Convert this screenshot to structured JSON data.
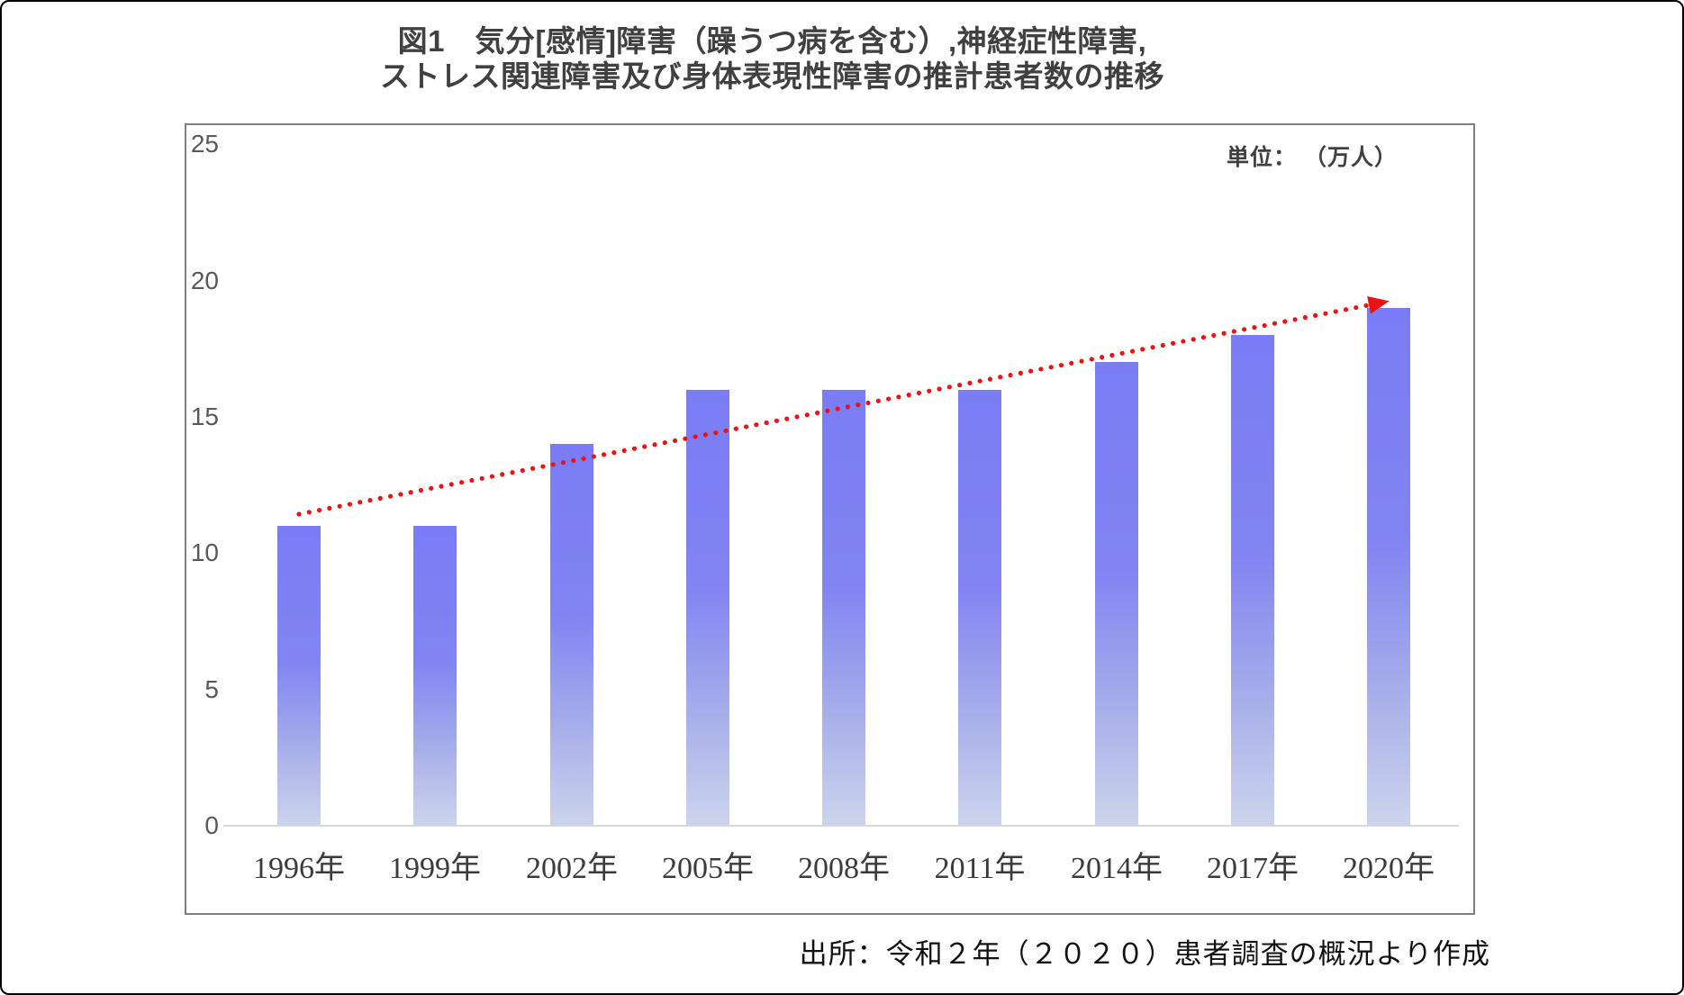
{
  "figure": {
    "title_line1": "図1　気分[感情]障害（躁うつ病を含む）,神経症性障害,",
    "title_line2": "ストレス関連障害及び身体表現性障害の推計患者数の推移",
    "unit_label": "単位： （万人）",
    "source": "出所：令和２年（２０２０）患者調査の概況より作成"
  },
  "chart_data": {
    "type": "bar",
    "title": "図1　気分[感情]障害（躁うつ病を含む）,神経症性障害,ストレス関連障害及び身体表現性障害の推計患者数の推移",
    "categories": [
      "1996年",
      "1999年",
      "2002年",
      "2005年",
      "2008年",
      "2011年",
      "2014年",
      "2017年",
      "2020年"
    ],
    "values": [
      11,
      11,
      14,
      16,
      16,
      16,
      17,
      18,
      19
    ],
    "xlabel": "",
    "ylabel": "",
    "unit": "万人",
    "ylim": [
      0,
      25
    ],
    "yticks": [
      0,
      5,
      10,
      15,
      20,
      25
    ],
    "grid": false,
    "legend": "none",
    "bar_color_top": "#7a7cf5",
    "bar_color_bottom": "#ccd4ec",
    "trend_arrow": {
      "style": "dotted",
      "color": "#ee1111",
      "from_category": "1996年",
      "to_category": "2020年",
      "from_value": 11.4,
      "to_value": 19.3
    }
  }
}
